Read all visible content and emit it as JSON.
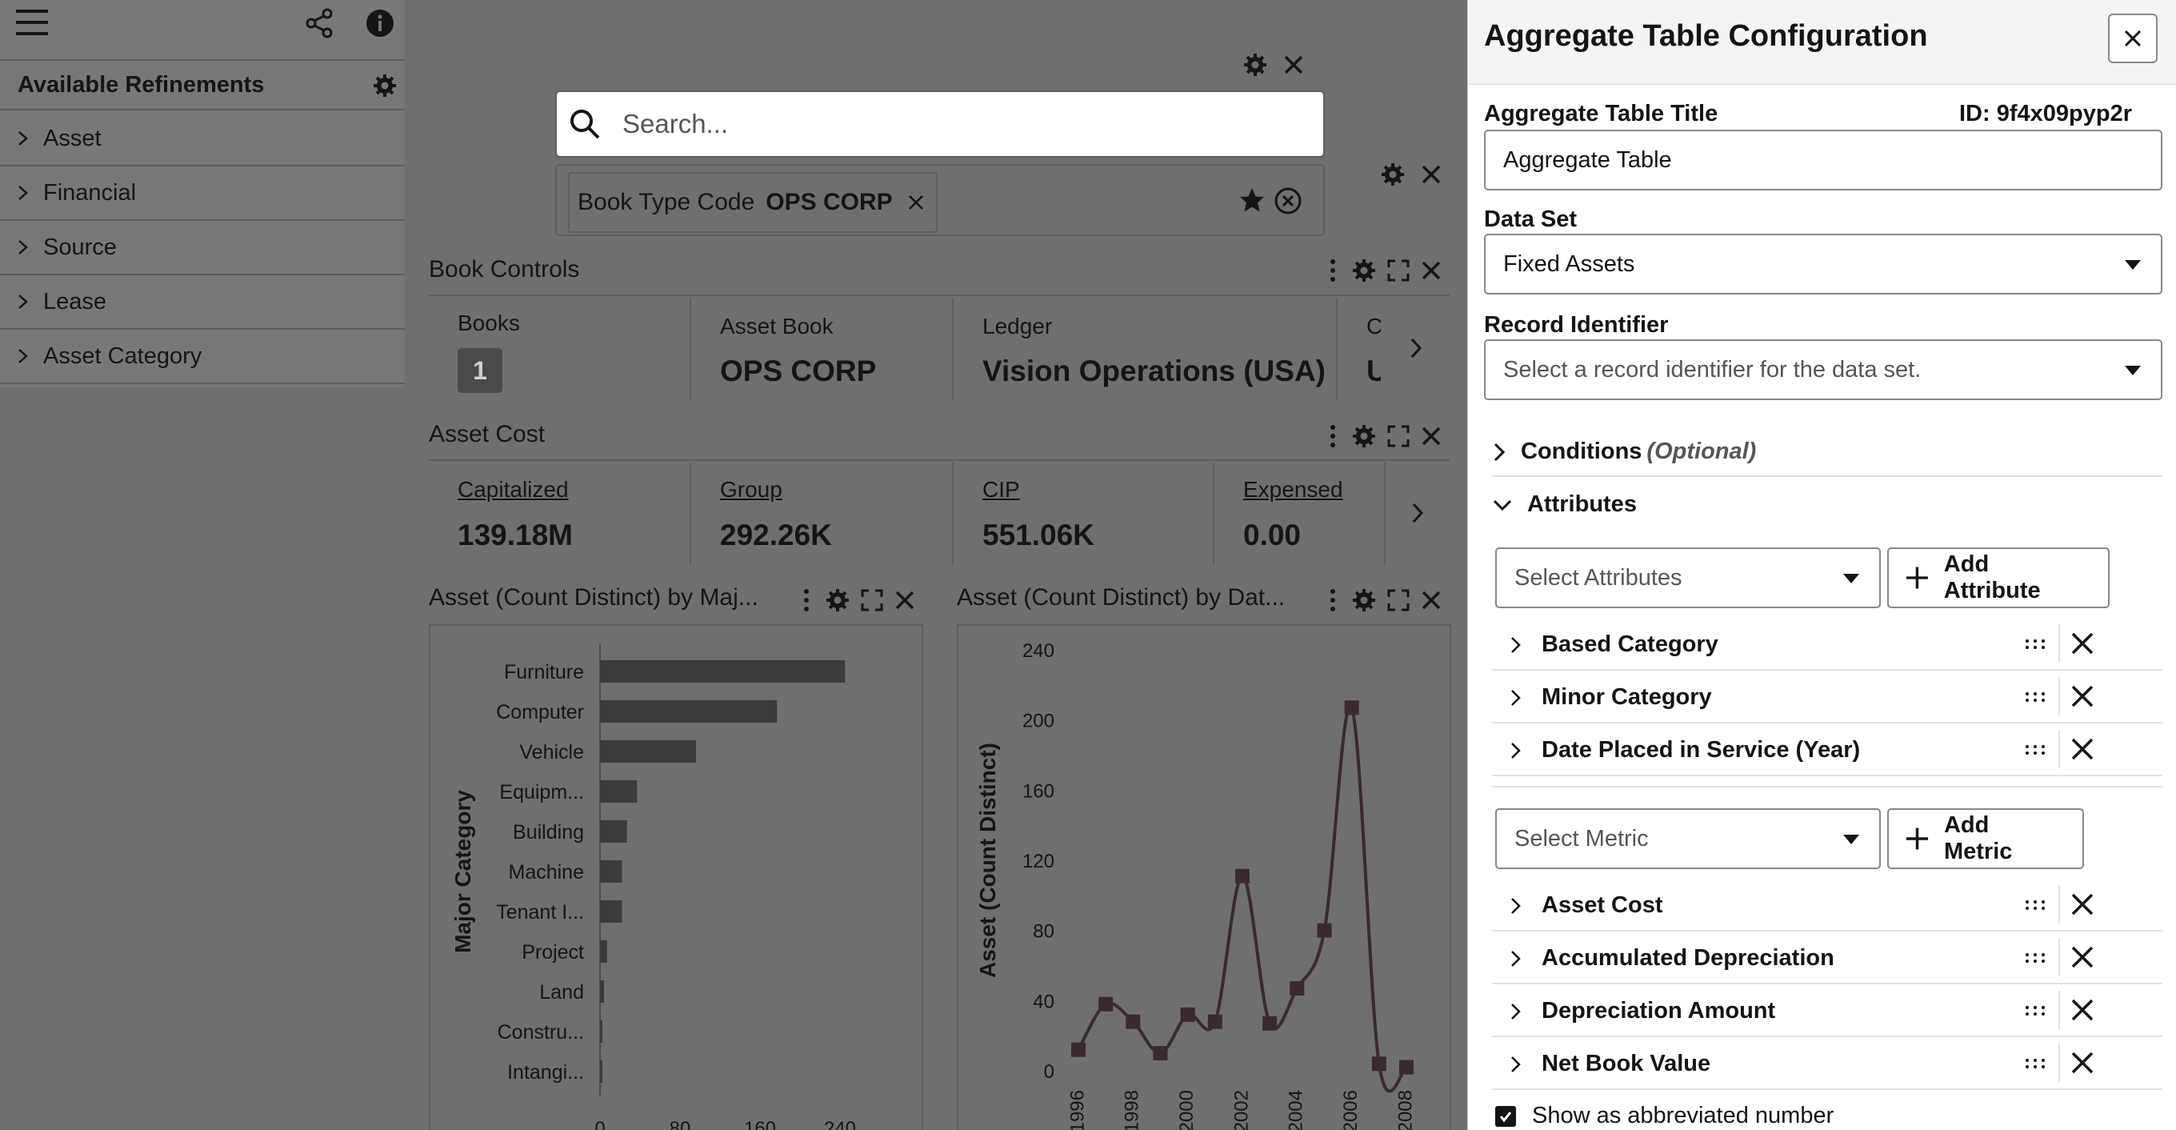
{
  "left_panel": {
    "header": "Available Refinements",
    "items": [
      "Asset",
      "Financial",
      "Source",
      "Lease",
      "Asset Category"
    ]
  },
  "search": {
    "placeholder": "Search..."
  },
  "filter": {
    "label": "Book Type Code",
    "value": "OPS CORP"
  },
  "book_controls": {
    "title": "Book Controls",
    "kpis": [
      {
        "label": "Books",
        "value": "1"
      },
      {
        "label": "Asset Book",
        "value": "OPS CORP"
      },
      {
        "label": "Ledger",
        "value": "Vision Operations (USA)"
      },
      {
        "label": "C",
        "value": "U"
      }
    ]
  },
  "asset_cost": {
    "title": "Asset Cost",
    "kpis": [
      {
        "label": "Capitalized",
        "value": "139.18M"
      },
      {
        "label": "Group",
        "value": "292.26K"
      },
      {
        "label": "CIP",
        "value": "551.06K"
      },
      {
        "label": "Expensed",
        "value": "0.00"
      }
    ]
  },
  "chart_data": [
    {
      "type": "bar",
      "title": "Asset (Count Distinct) by Maj...",
      "ylabel": "Major Category",
      "xlabel": "",
      "categories": [
        "Furniture",
        "Computer",
        "Vehicle",
        "Equipm...",
        "Building",
        "Machine",
        "Tenant I...",
        "Project",
        "Land",
        "Constru...",
        "Intangi..."
      ],
      "values": [
        245,
        177,
        96,
        37,
        27,
        22,
        22,
        7,
        4,
        2,
        1
      ],
      "xticks": [
        "0",
        "80",
        "160",
        "240"
      ],
      "xlim": [
        0,
        240
      ],
      "orientation": "horizontal",
      "color": "#3b3b3b"
    },
    {
      "type": "line",
      "title": "Asset (Count Distinct) by Dat...",
      "ylabel": "Asset (Count Distinct)",
      "xlabel": "",
      "x": [
        1996,
        1997,
        1998,
        1999,
        2000,
        2001,
        2002,
        2003,
        2004,
        2005,
        2006,
        2007,
        2008
      ],
      "values": [
        12,
        38,
        28,
        10,
        32,
        28,
        111,
        27,
        47,
        80,
        207,
        4,
        2
      ],
      "yticks": [
        "0",
        "40",
        "80",
        "120",
        "160",
        "200",
        "240"
      ],
      "xticks": [
        "1996",
        "1998",
        "2000",
        "2002",
        "2004",
        "2006",
        "2008"
      ],
      "ylim": [
        0,
        240
      ],
      "color": "#3a2a2e"
    }
  ],
  "drawer": {
    "title": "Aggregate Table Configuration",
    "title_field_label": "Aggregate Table Title",
    "id_text": "ID: 9f4x09pyp2r",
    "title_value": "Aggregate Table",
    "dataset_label": "Data Set",
    "dataset_value": "Fixed Assets",
    "record_label": "Record Identifier",
    "record_placeholder": "Select a record identifier for the data set.",
    "conditions_label": "Conditions",
    "conditions_optional": "(Optional)",
    "attributes_label": "Attributes",
    "select_attributes": "Select Attributes",
    "add_attribute": "Add Attribute",
    "attributes": [
      "Based Category",
      "Minor Category",
      "Date Placed in Service (Year)"
    ],
    "select_metric": "Select Metric",
    "add_metric": "Add Metric",
    "metrics": [
      "Asset Cost",
      "Accumulated Depreciation",
      "Depreciation Amount",
      "Net Book Value"
    ],
    "abbrev_label": "Show as abbreviated number"
  }
}
